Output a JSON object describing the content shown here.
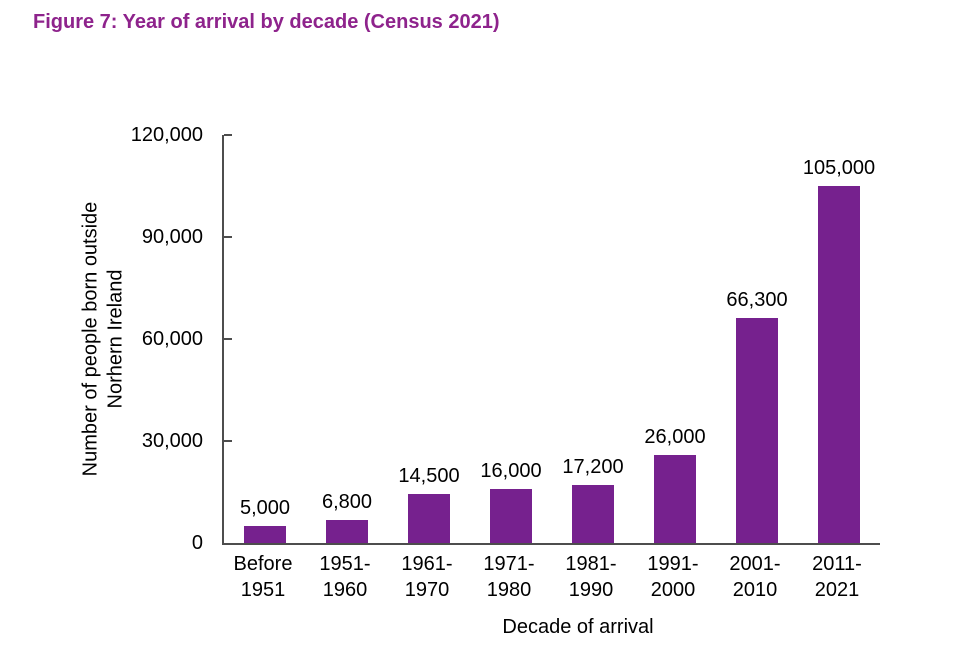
{
  "figure": {
    "title": "Figure 7: Year of arrival by decade (Census 2021)"
  },
  "colors": {
    "title": "#8E238C",
    "bar": "#76218E",
    "axis": "#4D4D4D",
    "text": "#000000",
    "background": "#FFFFFF"
  },
  "chart_data": {
    "type": "bar",
    "title": "Figure 7: Year of arrival by decade (Census 2021)",
    "categories": [
      "Before 1951",
      "1951-1960",
      "1961-1970",
      "1971-1980",
      "1981-1990",
      "1991-2000",
      "2001-2010",
      "2011-2021"
    ],
    "category_lines": [
      [
        "Before",
        "1951"
      ],
      [
        "1951-",
        "1960"
      ],
      [
        "1961-",
        "1970"
      ],
      [
        "1971-",
        "1980"
      ],
      [
        "1981-",
        "1990"
      ],
      [
        "1991-",
        "2000"
      ],
      [
        "2001-",
        "2010"
      ],
      [
        "2011-",
        "2021"
      ]
    ],
    "values": [
      5000,
      6800,
      14500,
      16000,
      17200,
      26000,
      66300,
      105000
    ],
    "value_labels": [
      "5,000",
      "6,800",
      "14,500",
      "16,000",
      "17,200",
      "26,000",
      "66,300",
      "105,000"
    ],
    "xlabel": "Decade of arrival",
    "ylabel": "Number of people born outside Norhern Ireland",
    "ylabel_lines": [
      "Number of people born outside",
      "Norhern Ireland"
    ],
    "ylim": [
      0,
      120000
    ],
    "y_ticks": [
      0,
      30000,
      60000,
      90000,
      120000
    ],
    "y_tick_labels": [
      "0",
      "30,000",
      "60,000",
      "90,000",
      "120,000"
    ],
    "grid": false,
    "legend": false,
    "bar_color": "#76218E"
  }
}
